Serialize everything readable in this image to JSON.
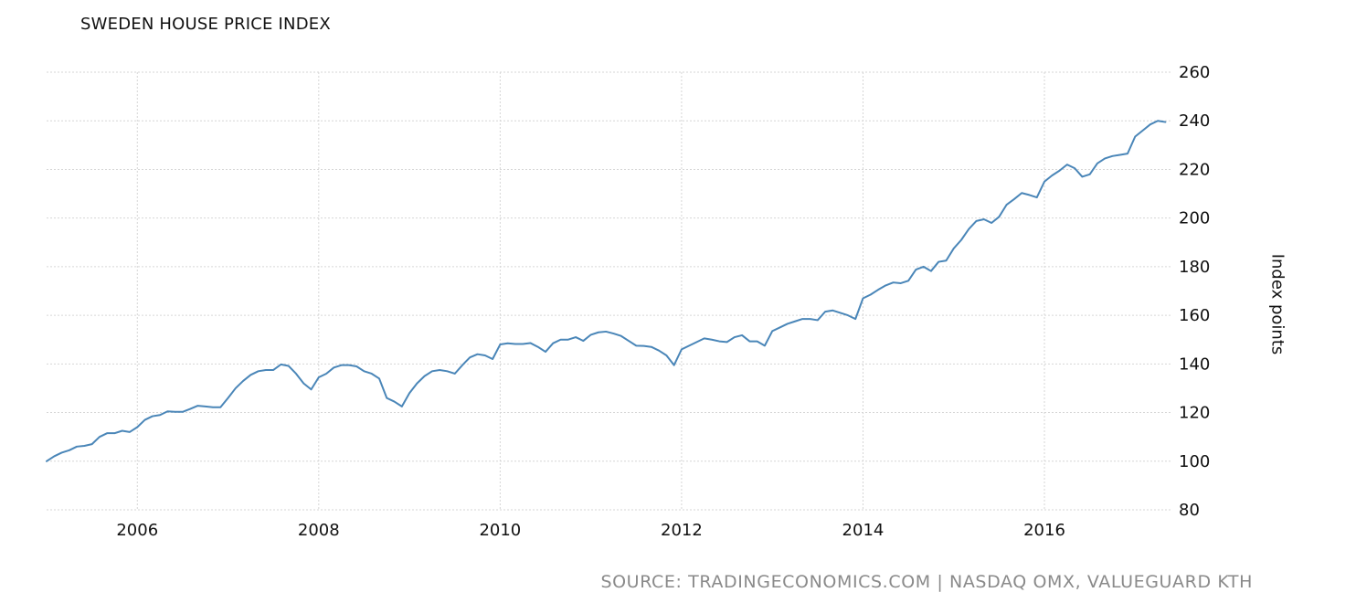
{
  "chart_data": {
    "type": "line",
    "title": "SWEDEN HOUSE PRICE INDEX",
    "ylabel": "Index points",
    "xlabel": "",
    "source": "SOURCE: TRADINGECONOMICS.COM | NASDAQ OMX, VALUEGUARD KTH",
    "xlim": [
      2005.0,
      2017.4
    ],
    "ylim": [
      80,
      260
    ],
    "x_ticks": [
      "2006",
      "2008",
      "2010",
      "2012",
      "2014",
      "2016"
    ],
    "y_ticks": [
      80,
      100,
      120,
      140,
      160,
      180,
      200,
      220,
      240,
      260
    ],
    "grid": true,
    "line_color": "#4a86b8",
    "series": [
      {
        "name": "",
        "start": "2005-01",
        "frequency": "monthly",
        "values": [
          100,
          102,
          103.5,
          104.5,
          106,
          106.3,
          107,
          110,
          111.5,
          111.5,
          112.5,
          112,
          114,
          117,
          118.5,
          119,
          120.5,
          120.3,
          120.3,
          121.5,
          122.8,
          122.5,
          122.2,
          122.2,
          126,
          130,
          133,
          135.5,
          137,
          137.5,
          137.5,
          139.8,
          139.2,
          136,
          132,
          129.5,
          134.5,
          136,
          138.5,
          139.5,
          139.5,
          139,
          137,
          136,
          134,
          126,
          124.5,
          122.5,
          128,
          132,
          135,
          137,
          137.5,
          137,
          136,
          139.5,
          142.7,
          144,
          143.5,
          142,
          148,
          148.5,
          148.2,
          148.2,
          148.6,
          147,
          145,
          148.5,
          150,
          150,
          151,
          149.5,
          152,
          153,
          153.3,
          152.5,
          151.5,
          149.5,
          147.5,
          147.4,
          147,
          145.5,
          143.5,
          139.5,
          146,
          147.5,
          149,
          150.5,
          150,
          149.3,
          149,
          151,
          151.8,
          149.3,
          149.3,
          147.5,
          153.5,
          155,
          156.5,
          157.5,
          158.5,
          158.5,
          158,
          161.5,
          162,
          161,
          160,
          158.5,
          167,
          168.5,
          170.5,
          172.3,
          173.5,
          173.2,
          174.2,
          178.8,
          180,
          178.2,
          182,
          182.5,
          187.5,
          191,
          195.5,
          198.8,
          199.5,
          198,
          200.5,
          205.5,
          207.8,
          210.3,
          209.5,
          208.5,
          215,
          217.5,
          219.5,
          222,
          220.5,
          217,
          218,
          222.5,
          224.5,
          225.5,
          226,
          226.5,
          233.5,
          236,
          238.5,
          240,
          239.5
        ]
      }
    ]
  }
}
